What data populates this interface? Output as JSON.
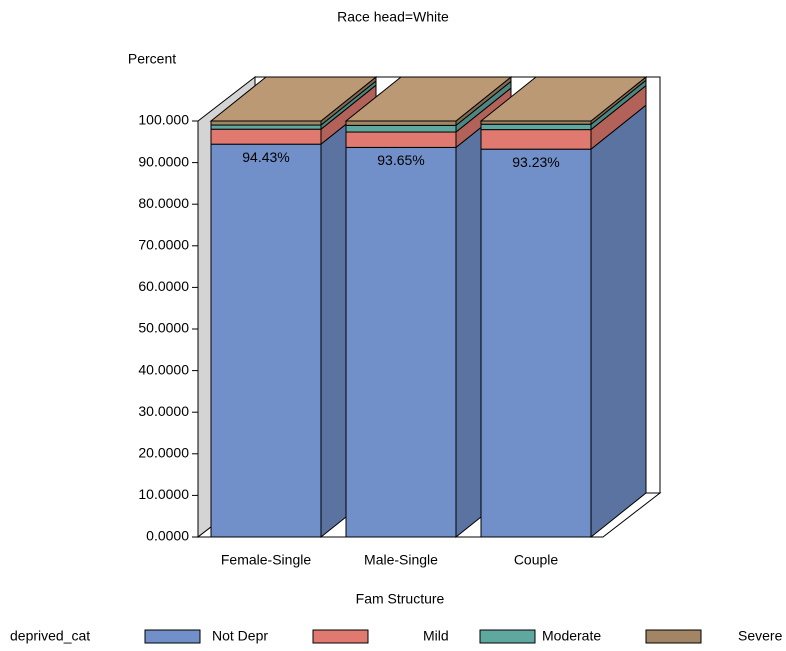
{
  "chart_data": {
    "type": "bar3d_stacked",
    "title": "Race head=White",
    "y_label": "Percent",
    "x_label": "Fam Structure",
    "legend_title": "deprived_cat",
    "categories": [
      "Female-Single",
      "Male-Single",
      "Couple"
    ],
    "series": [
      {
        "name": "Not Depr",
        "color": "#7190c9",
        "values": [
          94.43,
          93.65,
          93.23
        ],
        "value_labels": [
          "94.43%",
          "93.65%",
          "93.23%"
        ]
      },
      {
        "name": "Mild",
        "color": "#e07a70",
        "values": [
          3.6,
          3.7,
          4.7
        ]
      },
      {
        "name": "Moderate",
        "color": "#5fa8a0",
        "values": [
          1.0,
          1.6,
          1.3
        ]
      },
      {
        "name": "Severe",
        "color": "#a28565",
        "values": [
          0.97,
          1.05,
          0.77
        ]
      }
    ],
    "ylim": [
      0,
      100
    ],
    "yticks": [
      {
        "value": 0,
        "label": "0.0000"
      },
      {
        "value": 10,
        "label": "10.0000"
      },
      {
        "value": 20,
        "label": "20.0000"
      },
      {
        "value": 30,
        "label": "30.0000"
      },
      {
        "value": 40,
        "label": "40.0000"
      },
      {
        "value": 50,
        "label": "50.0000"
      },
      {
        "value": 60,
        "label": "60.0000"
      },
      {
        "value": 70,
        "label": "70.0000"
      },
      {
        "value": 80,
        "label": "80.0000"
      },
      {
        "value": 90,
        "label": "90.0000"
      },
      {
        "value": 100,
        "label": "100.000"
      }
    ]
  }
}
